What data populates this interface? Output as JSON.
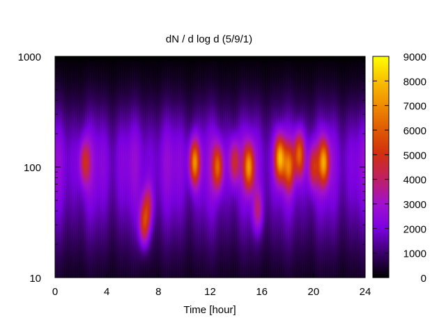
{
  "chart_data": {
    "type": "heatmap",
    "title": "dN / d log d (5/9/1)",
    "xlabel": "Time [hour]",
    "ylabel": "",
    "xlim": [
      0,
      24
    ],
    "x_ticks": [
      "0",
      "4",
      "8",
      "12",
      "16",
      "20",
      "24"
    ],
    "ylim": [
      10,
      1000
    ],
    "y_scale": "log",
    "y_ticks": [
      "10",
      "100",
      "1000"
    ],
    "colorbar": {
      "range": [
        0,
        9000
      ],
      "ticks": [
        "0",
        "1000",
        "2000",
        "3000",
        "4000",
        "5000",
        "6000",
        "7000",
        "8000",
        "9000"
      ],
      "colormap": "black-purple-red-orange-yellow"
    },
    "data_range_y": [
      9,
      900
    ],
    "background_level": {
      "description": "broad band of concentration across all times, peaking near 100-150 nm",
      "peak_diameter": 110,
      "peak_value": 2600
    },
    "hotspots": [
      {
        "time": 2.3,
        "diameter": 110,
        "value": 4800
      },
      {
        "time": 6.9,
        "diameter": 30,
        "value": 5800
      },
      {
        "time": 7.2,
        "diameter": 45,
        "value": 4500
      },
      {
        "time": 10.8,
        "diameter": 110,
        "value": 7200
      },
      {
        "time": 12.6,
        "diameter": 100,
        "value": 6200
      },
      {
        "time": 13.9,
        "diameter": 110,
        "value": 5000
      },
      {
        "time": 15.0,
        "diameter": 100,
        "value": 7000
      },
      {
        "time": 15.7,
        "diameter": 40,
        "value": 4200
      },
      {
        "time": 17.4,
        "diameter": 120,
        "value": 7800
      },
      {
        "time": 18.1,
        "diameter": 100,
        "value": 6000
      },
      {
        "time": 18.9,
        "diameter": 130,
        "value": 6500
      },
      {
        "time": 20.0,
        "diameter": 100,
        "value": 5200
      },
      {
        "time": 20.8,
        "diameter": 110,
        "value": 7200
      }
    ]
  }
}
